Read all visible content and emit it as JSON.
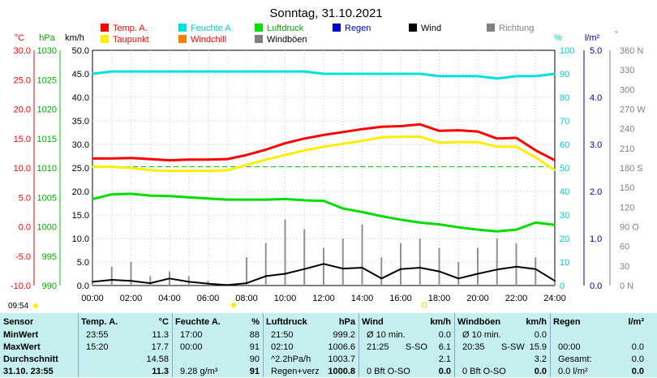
{
  "chart_data": {
    "type": "line",
    "title": "Sonntag, 31.10.2021",
    "legend": [
      {
        "name": "Temp. A.",
        "color": "#ff0000"
      },
      {
        "name": "Feuchte A.",
        "color": "#00e0e0"
      },
      {
        "name": "Luftdruck",
        "color": "#00dd00"
      },
      {
        "name": "Regen",
        "color": "#0000cc"
      },
      {
        "name": "Wind",
        "color": "#000000"
      },
      {
        "name": "Richtung",
        "color": "#808080"
      },
      {
        "name": "Taupunkt",
        "color": "#ffee00"
      },
      {
        "name": "Windchill",
        "color": "#ff8000"
      },
      {
        "name": "Windböen",
        "color": "#808080"
      }
    ],
    "axes": {
      "temp": {
        "unit": "°C",
        "color": "#ff0000",
        "ticks": [
          "30.0",
          "25.0",
          "20.0",
          "15.0",
          "10.0",
          "5.0",
          "0.0",
          "-5.0",
          "-10.0"
        ],
        "ylim": [
          -10,
          30
        ]
      },
      "pressure": {
        "unit": "hPa",
        "color": "#00aa00",
        "ticks": [
          "1030",
          "1025",
          "1020",
          "1015",
          "1010",
          "1005",
          "1000",
          "995",
          "990"
        ],
        "ylim": [
          990,
          1030
        ]
      },
      "wind": {
        "unit": "km/h",
        "color": "#000000",
        "ticks": [
          "50.0",
          "45.0",
          "40.0",
          "35.0",
          "30.0",
          "25.0",
          "20.0",
          "15.0",
          "10.0",
          "5.0",
          "0.0"
        ],
        "ylim": [
          0,
          50
        ]
      },
      "humidity": {
        "unit": "%",
        "color": "#00cccc",
        "ticks": [
          "100",
          "90",
          "80",
          "70",
          "60",
          "50",
          "40",
          "30",
          "20",
          "10",
          "0"
        ],
        "ylim": [
          0,
          100
        ]
      },
      "rain": {
        "unit": "l/m²",
        "color": "#0000aa",
        "ticks": [
          "5.0",
          "4.0",
          "3.0",
          "2.0",
          "1.0",
          "0.0"
        ],
        "ylim": [
          0,
          5
        ]
      },
      "direction": {
        "unit": "°",
        "color": "#808080",
        "ticks": [
          "360 N",
          "330",
          "300",
          "270 W",
          "240",
          "210",
          "180 S",
          "150",
          "120",
          "90 O",
          "60",
          "30",
          "0 N"
        ],
        "ylim": [
          0,
          360
        ]
      }
    },
    "xlabels": [
      "00:00",
      "02:00",
      "04:00",
      "06:00",
      "08:00",
      "10:00",
      "12:00",
      "14:00",
      "16:00",
      "18:00",
      "20:00",
      "22:00",
      "24:00"
    ],
    "x_hours": [
      0,
      1,
      2,
      3,
      4,
      5,
      6,
      7,
      8,
      9,
      10,
      11,
      12,
      13,
      14,
      15,
      16,
      17,
      18,
      19,
      20,
      21,
      22,
      23,
      24
    ],
    "series": [
      {
        "name": "Temp. A.",
        "axis": "temp",
        "color": "#ff0000",
        "values": [
          11.6,
          11.6,
          11.7,
          11.5,
          11.3,
          11.4,
          11.4,
          11.5,
          12.2,
          13.1,
          14.2,
          15.0,
          15.6,
          16.1,
          16.6,
          17.0,
          17.1,
          17.4,
          16.3,
          16.4,
          16.2,
          15.0,
          15.1,
          13.0,
          11.3
        ]
      },
      {
        "name": "Taupunkt",
        "axis": "temp",
        "color": "#ffee00",
        "values": [
          10.2,
          10.2,
          10.0,
          9.6,
          9.5,
          9.5,
          9.5,
          9.6,
          10.5,
          11.4,
          12.2,
          13.0,
          13.6,
          14.1,
          14.6,
          15.2,
          15.3,
          15.3,
          14.3,
          14.4,
          14.4,
          13.6,
          13.6,
          11.8,
          9.6
        ]
      },
      {
        "name": "Feuchte A.",
        "axis": "humidity",
        "color": "#00e0e0",
        "values": [
          90,
          91,
          91,
          91,
          91,
          91,
          91,
          91,
          91,
          91,
          91,
          91,
          90,
          90,
          90,
          90,
          90,
          90,
          89,
          89,
          89,
          88,
          89,
          89,
          90
        ]
      },
      {
        "name": "Luftdruck",
        "axis": "pressure",
        "color": "#00dd00",
        "values": [
          1004.7,
          1005.5,
          1005.6,
          1005.3,
          1005.2,
          1005.0,
          1004.8,
          1004.6,
          1004.6,
          1004.6,
          1004.7,
          1004.5,
          1004.4,
          1003.1,
          1002.5,
          1001.8,
          1001.2,
          1000.7,
          1000.4,
          999.9,
          999.5,
          999.2,
          999.5,
          1000.7,
          1000.3
        ]
      },
      {
        "name": "Wind",
        "axis": "wind",
        "color": "#000000",
        "values": [
          0.8,
          1.2,
          1.0,
          0.5,
          1.5,
          0.8,
          0.4,
          0.1,
          0.5,
          2.0,
          2.5,
          3.5,
          4.6,
          3.6,
          3.8,
          1.5,
          3.5,
          3.8,
          3.0,
          1.5,
          2.5,
          3.4,
          4.0,
          3.5,
          1.0
        ]
      },
      {
        "name": "Windböen",
        "axis": "wind",
        "color": "#909090",
        "values": [
          8,
          4,
          5,
          2,
          3,
          2,
          1,
          0,
          6,
          9,
          14,
          12,
          8,
          10,
          13,
          6,
          9,
          10,
          8,
          5,
          8,
          10,
          9,
          6,
          2
        ]
      }
    ],
    "reference_line": {
      "axis": "temp",
      "value": 10.2,
      "color": "#00cc00",
      "style": "dashed"
    },
    "footer_time": "09:54",
    "grid": true
  },
  "table": {
    "columns": [
      {
        "title": "Sensor",
        "unit": ""
      },
      {
        "title": "Temp. A.",
        "unit": "°C"
      },
      {
        "title": "Feuchte A.",
        "unit": "%"
      },
      {
        "title": "Luftdruck",
        "unit": "hPa"
      },
      {
        "title": "Wind",
        "unit": "km/h"
      },
      {
        "title": "Windböen",
        "unit": "km/h"
      },
      {
        "title": "Regen",
        "unit": "l/m²"
      }
    ],
    "rows": [
      {
        "label": "MinWert",
        "temp": [
          "23:55",
          "11.3"
        ],
        "hum": [
          "17:00",
          "88"
        ],
        "press": [
          "21:50",
          "999.2"
        ],
        "wind": [
          "Ø 10 min.",
          "",
          "0.0"
        ],
        "gust": [
          "Ø 10 min.",
          "",
          "0.0"
        ],
        "rain": [
          "",
          "",
          ""
        ]
      },
      {
        "label": "MaxWert",
        "temp": [
          "15:20",
          "17.7"
        ],
        "hum": [
          "00:00",
          "91"
        ],
        "press": [
          "02:10",
          "1006.6"
        ],
        "wind": [
          "21:25",
          "S-SO",
          "6.1"
        ],
        "gust": [
          "20:35",
          "S-SW",
          "15.9"
        ],
        "rain": [
          "00:00",
          "",
          "0.0"
        ]
      },
      {
        "label": "Durchschnitt",
        "temp": [
          "",
          "14.58"
        ],
        "hum": [
          "",
          "90"
        ],
        "press": [
          "^2.2hPa/h",
          "1003.7"
        ],
        "wind": [
          "",
          "",
          "2.1"
        ],
        "gust": [
          "",
          "",
          "3.2"
        ],
        "rain": [
          "Gesamt:",
          "",
          "0.0"
        ]
      },
      {
        "label": "31.10. 23:55",
        "temp": [
          "",
          "11.3"
        ],
        "hum": [
          "9.28 g/m³",
          "91"
        ],
        "press": [
          "Regen+verz",
          "1000.8"
        ],
        "wind": [
          "0 Bft O-SO",
          "",
          "0.0"
        ],
        "gust": [
          "0 Bft O-SO",
          "",
          "0.0"
        ],
        "rain": [
          "0.0 l/m²",
          "",
          "0.0"
        ]
      }
    ]
  }
}
